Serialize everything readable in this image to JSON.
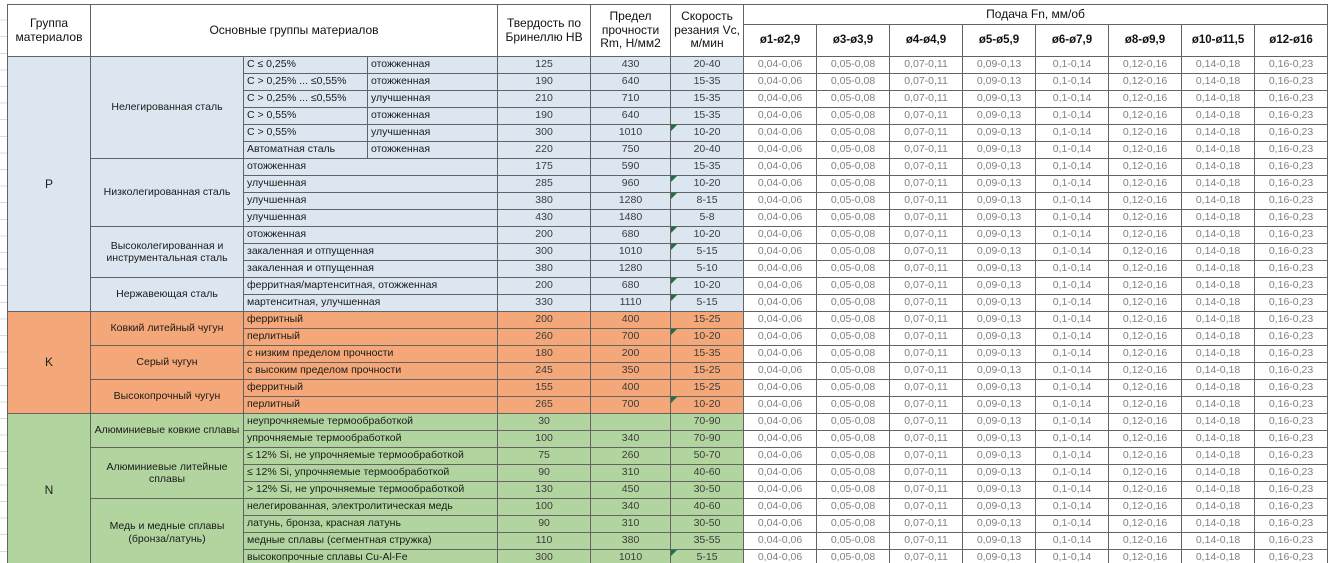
{
  "header": {
    "col_group": "Группа материалов",
    "col_main": "Основные группы материалов",
    "col_hb": "Твердость по Бринеллю HB",
    "col_rm": "Предел прочности Rm, Н/мм2",
    "col_vc": "Скорость резания Vc, м/мин",
    "col_feed": "Подача Fn, мм/об",
    "feed_cols": [
      "ø1-ø2,9",
      "ø3-ø3,9",
      "ø4-ø4,9",
      "ø5-ø5,9",
      "ø6-ø7,9",
      "ø8-ø9,9",
      "ø10-ø11,5",
      "ø12-ø16"
    ]
  },
  "colors": {
    "P": "#DCE6F1",
    "K": "#F4A778",
    "N": "#B2D5A0",
    "flag": "#1E7145",
    "feed_text": "#808080",
    "border": "#636363"
  },
  "feed_values": [
    "0,04-0,06",
    "0,05-0,08",
    "0,07-0,11",
    "0,09-0,13",
    "0,1-0,14",
    "0,12-0,16",
    "0,14-0,18",
    "0,16-0,23"
  ],
  "rows": [
    {
      "section": "P",
      "group": {
        "label": "P",
        "rowspan": 15
      },
      "material": {
        "label": "Нелегированная сталь",
        "rowspan": 6
      },
      "sub": [
        "C ≤ 0,25%",
        "отожженная"
      ],
      "hb": "125",
      "rm": "430",
      "vc": "20-40"
    },
    {
      "section": "P",
      "sub": [
        "C > 0,25% ... ≤0,55%",
        "отожженная"
      ],
      "hb": "190",
      "rm": "640",
      "vc": "15-35"
    },
    {
      "section": "P",
      "sub": [
        "C > 0,25% ... ≤0,55%",
        "улучшенная"
      ],
      "hb": "210",
      "rm": "710",
      "vc": "15-35"
    },
    {
      "section": "P",
      "sub": [
        "C > 0,55%",
        "отожженная"
      ],
      "hb": "190",
      "rm": "640",
      "vc": "15-35"
    },
    {
      "section": "P",
      "sub": [
        "C > 0,55%",
        "улучшенная"
      ],
      "hb": "300",
      "rm": "1010",
      "vc": "10-20",
      "flag": true
    },
    {
      "section": "P",
      "sub": [
        "Автоматная сталь",
        "отожженная"
      ],
      "hb": "220",
      "rm": "750",
      "vc": "20-40"
    },
    {
      "section": "P",
      "material": {
        "label": "Низколегированная сталь",
        "rowspan": 4
      },
      "name": "отожженная",
      "hb": "175",
      "rm": "590",
      "vc": "15-35"
    },
    {
      "section": "P",
      "name": "улучшенная",
      "hb": "285",
      "rm": "960",
      "vc": "10-20",
      "flag": true
    },
    {
      "section": "P",
      "name": "улучшенная",
      "hb": "380",
      "rm": "1280",
      "vc": "8-15",
      "flag": true
    },
    {
      "section": "P",
      "name": "улучшенная",
      "hb": "430",
      "rm": "1480",
      "vc": "5-8"
    },
    {
      "section": "P",
      "material": {
        "label": "Высоколегированная и инструментальная сталь",
        "rowspan": 3
      },
      "name": "отожженная",
      "hb": "200",
      "rm": "680",
      "vc": "10-20",
      "flag": true
    },
    {
      "section": "P",
      "name": "закаленная и отпущенная",
      "hb": "300",
      "rm": "1010",
      "vc": "5-15",
      "flag": true
    },
    {
      "section": "P",
      "name": "закаленная и отпущенная",
      "hb": "380",
      "rm": "1280",
      "vc": "5-10"
    },
    {
      "section": "P",
      "material": {
        "label": "Нержавеющая сталь",
        "rowspan": 2
      },
      "name": "ферритная/мартенситная, отожженная",
      "hb": "200",
      "rm": "680",
      "vc": "10-20",
      "flag": true
    },
    {
      "section": "P",
      "name": "мартенситная, улучшенная",
      "hb": "330",
      "rm": "1110",
      "vc": "5-15",
      "flag": true
    },
    {
      "section": "K",
      "group": {
        "label": "K",
        "rowspan": 6
      },
      "material": {
        "label": "Ковкий литейный чугун",
        "rowspan": 2
      },
      "name": "ферритный",
      "hb": "200",
      "rm": "400",
      "vc": "15-25"
    },
    {
      "section": "K",
      "name": "перлитный",
      "hb": "260",
      "rm": "700",
      "vc": "10-20",
      "flag": true
    },
    {
      "section": "K",
      "material": {
        "label": "Серый чугун",
        "rowspan": 2
      },
      "name": "с низким пределом прочности",
      "hb": "180",
      "rm": "200",
      "vc": "15-35"
    },
    {
      "section": "K",
      "name": "с высоким пределом прочности",
      "hb": "245",
      "rm": "350",
      "vc": "15-25"
    },
    {
      "section": "K",
      "material": {
        "label": "Высокопрочный чугун",
        "rowspan": 2
      },
      "name": "ферритный",
      "hb": "155",
      "rm": "400",
      "vc": "15-25"
    },
    {
      "section": "K",
      "name": "перлитный",
      "hb": "265",
      "rm": "700",
      "vc": "10-20",
      "flag": true
    },
    {
      "section": "N",
      "group": {
        "label": "N",
        "rowspan": 9
      },
      "material": {
        "label": "Алюминиевые ковкие сплавы",
        "rowspan": 2
      },
      "name": "неупрочняемые термообработкой",
      "hb": "30",
      "rm": "",
      "vc": "70-90"
    },
    {
      "section": "N",
      "name": "упрочняемые термообработкой",
      "hb": "100",
      "rm": "340",
      "vc": "70-90"
    },
    {
      "section": "N",
      "material": {
        "label": "Алюминиевые литейные сплавы",
        "rowspan": 3
      },
      "name": "≤ 12% Si, не упрочняемые термообработкой",
      "hb": "75",
      "rm": "260",
      "vc": "50-70"
    },
    {
      "section": "N",
      "name": "≤ 12% Si, упрочняемые термообработкой",
      "hb": "90",
      "rm": "310",
      "vc": "40-60"
    },
    {
      "section": "N",
      "name": "> 12% Si, не упрочняемые термообработкой",
      "hb": "130",
      "rm": "450",
      "vc": "30-50"
    },
    {
      "section": "N",
      "material": {
        "label": "Медь и медные сплавы (бронза/латунь)",
        "rowspan": 4
      },
      "name": "нелегированная, электролитическая медь",
      "hb": "100",
      "rm": "340",
      "vc": "40-60"
    },
    {
      "section": "N",
      "name": "латунь, бронза, красная латунь",
      "hb": "90",
      "rm": "310",
      "vc": "30-50"
    },
    {
      "section": "N",
      "name": "медные сплавы (сегментная стружка)",
      "hb": "110",
      "rm": "380",
      "vc": "35-55"
    },
    {
      "section": "N",
      "name": "высокопрочные сплавы Cu-Al-Fe",
      "hb": "300",
      "rm": "1010",
      "vc": "5-15",
      "flag": true
    }
  ]
}
